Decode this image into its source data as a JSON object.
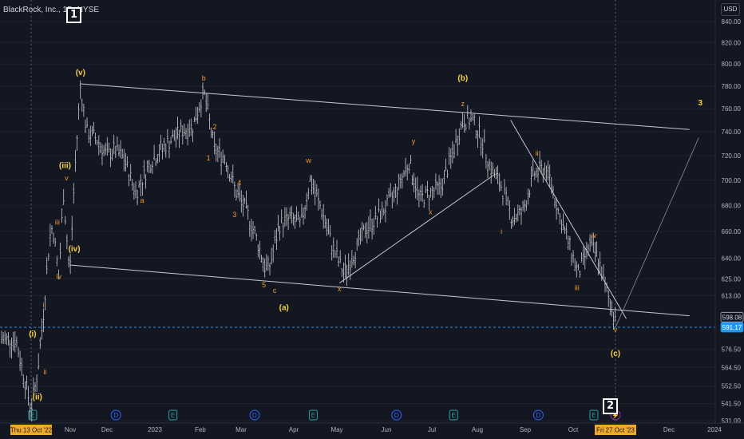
{
  "header": {
    "symbol": "BlackRock, Inc., 1D, NYSE",
    "currency": "USD"
  },
  "box_labels": [
    "1",
    "2"
  ],
  "chart_data": {
    "type": "candlestick",
    "title": "",
    "y_axis": {
      "ticks": [
        "840.00",
        "820.00",
        "800.00",
        "780.00",
        "760.00",
        "740.00",
        "720.00",
        "700.00",
        "680.00",
        "660.00",
        "640.00",
        "625.00",
        "613.00",
        "598.08",
        "591.17",
        "576.50",
        "564.50",
        "552.50",
        "541.50",
        "531.00"
      ],
      "scale": "log"
    },
    "x_axis": {
      "ticks": [
        "Nov",
        "Dec",
        "2023",
        "Feb",
        "Mar",
        "Apr",
        "May",
        "Jun",
        "Jul",
        "Aug",
        "Sep",
        "Oct",
        "Dec",
        "2024"
      ],
      "crosshair_start": "Thu 13 Oct '22",
      "crosshair_end": "Fri 27 Oct '23"
    },
    "price_badges": [
      {
        "value": "598.08",
        "kind": "last-close"
      },
      {
        "value": "591.17",
        "kind": "current"
      }
    ],
    "colors": {
      "background": "#131722",
      "bars": "#c8cad0",
      "wave_orange": "#f09a2b",
      "wave_yellow": "#f5d142",
      "current_price": "#2196f3"
    },
    "price_path": [
      [
        "2022-10-03",
        583
      ],
      [
        "2022-10-08",
        560
      ],
      [
        "2022-10-13",
        538
      ],
      [
        "2022-10-17",
        560
      ],
      [
        "2022-10-21",
        600
      ],
      [
        "2022-10-25",
        655
      ],
      [
        "2022-10-27",
        665
      ],
      [
        "2022-10-31",
        625
      ],
      [
        "2022-11-03",
        690
      ],
      [
        "2022-11-07",
        625
      ],
      [
        "2022-11-10",
        700
      ],
      [
        "2022-11-14",
        780
      ],
      [
        "2022-11-18",
        740
      ],
      [
        "2022-11-24",
        735
      ],
      [
        "2022-12-01",
        720
      ],
      [
        "2022-12-06",
        725
      ],
      [
        "2022-12-12",
        718
      ],
      [
        "2022-12-20",
        690
      ],
      [
        "2022-12-30",
        716
      ],
      [
        "2023-01-09",
        730
      ],
      [
        "2023-01-18",
        740
      ],
      [
        "2023-01-26",
        745
      ],
      [
        "2023-02-02",
        775
      ],
      [
        "2023-02-09",
        725
      ],
      [
        "2023-02-16",
        718
      ],
      [
        "2023-02-23",
        690
      ],
      [
        "2023-03-02",
        675
      ],
      [
        "2023-03-08",
        655
      ],
      [
        "2023-03-14",
        632
      ],
      [
        "2023-03-17",
        635
      ],
      [
        "2023-03-23",
        665
      ],
      [
        "2023-03-30",
        670
      ],
      [
        "2023-04-06",
        665
      ],
      [
        "2023-04-12",
        700
      ],
      [
        "2023-04-19",
        678
      ],
      [
        "2023-04-26",
        650
      ],
      [
        "2023-05-04",
        628
      ],
      [
        "2023-05-11",
        645
      ],
      [
        "2023-05-18",
        662
      ],
      [
        "2023-05-25",
        670
      ],
      [
        "2023-06-01",
        680
      ],
      [
        "2023-06-08",
        695
      ],
      [
        "2023-06-15",
        715
      ],
      [
        "2023-06-22",
        685
      ],
      [
        "2023-06-29",
        690
      ],
      [
        "2023-07-06",
        695
      ],
      [
        "2023-07-13",
        720
      ],
      [
        "2023-07-20",
        750
      ],
      [
        "2023-07-26",
        750
      ],
      [
        "2023-08-01",
        735
      ],
      [
        "2023-08-07",
        710
      ],
      [
        "2023-08-14",
        695
      ],
      [
        "2023-08-21",
        670
      ],
      [
        "2023-08-28",
        675
      ],
      [
        "2023-09-04",
        705
      ],
      [
        "2023-09-11",
        710
      ],
      [
        "2023-09-15",
        700
      ],
      [
        "2023-09-21",
        670
      ],
      [
        "2023-09-27",
        650
      ],
      [
        "2023-10-03",
        628
      ],
      [
        "2023-10-10",
        650
      ],
      [
        "2023-10-16",
        640
      ],
      [
        "2023-10-20",
        620
      ],
      [
        "2023-10-26",
        600
      ],
      [
        "2023-10-27",
        598
      ]
    ],
    "trendlines": [
      {
        "from": [
          "2022-11-14",
          782
        ],
        "to": [
          "2023-12-14",
          742
        ]
      },
      {
        "from": [
          "2022-11-07",
          635
        ],
        "to": [
          "2023-12-14",
          599
        ]
      },
      {
        "from": [
          "2023-05-01",
          622
        ],
        "to": [
          "2023-08-10",
          705
        ]
      },
      {
        "from": [
          "2023-08-20",
          750
        ],
        "to": [
          "2023-11-03",
          597
        ]
      },
      {
        "from": [
          "2023-10-27",
          591
        ],
        "to": [
          "2023-12-20",
          735
        ]
      }
    ],
    "annotations": [
      {
        "text": "(v)",
        "date": "2022-11-14",
        "price": 790,
        "color": "yellow"
      },
      {
        "text": "(iii)",
        "date": "2022-11-04",
        "price": 710,
        "color": "yellow"
      },
      {
        "text": "(iv)",
        "date": "2022-11-10",
        "price": 645,
        "color": "yellow"
      },
      {
        "text": "(i)",
        "date": "2022-10-14",
        "price": 585,
        "color": "yellow"
      },
      {
        "text": "(ii)",
        "date": "2022-10-17",
        "price": 544,
        "color": "yellow"
      },
      {
        "text": "v",
        "date": "2022-11-05",
        "price": 700,
        "color": "orange"
      },
      {
        "text": "iii",
        "date": "2022-10-30",
        "price": 665,
        "color": "orange"
      },
      {
        "text": "iv",
        "date": "2022-10-31",
        "price": 625,
        "color": "orange"
      },
      {
        "text": "i",
        "date": "2022-10-21",
        "price": 605,
        "color": "orange"
      },
      {
        "text": "ii",
        "date": "2022-10-22",
        "price": 560,
        "color": "orange"
      },
      {
        "text": "b",
        "date": "2023-02-02",
        "price": 785,
        "color": "orange"
      },
      {
        "text": "2",
        "date": "2023-02-09",
        "price": 742,
        "color": "orange"
      },
      {
        "text": "1",
        "date": "2023-02-05",
        "price": 716,
        "color": "orange"
      },
      {
        "text": "4",
        "date": "2023-02-25",
        "price": 696,
        "color": "orange"
      },
      {
        "text": "3",
        "date": "2023-02-22",
        "price": 671,
        "color": "orange"
      },
      {
        "text": "5",
        "date": "2023-03-13",
        "price": 619,
        "color": "orange"
      },
      {
        "text": "a",
        "date": "2022-12-24",
        "price": 682,
        "color": "orange"
      },
      {
        "text": "c",
        "date": "2023-03-20",
        "price": 615,
        "color": "orange"
      },
      {
        "text": "(a)",
        "date": "2023-03-26",
        "price": 603,
        "color": "yellow"
      },
      {
        "text": "w",
        "date": "2023-04-11",
        "price": 714,
        "color": "orange"
      },
      {
        "text": "x",
        "date": "2023-05-01",
        "price": 616,
        "color": "orange"
      },
      {
        "text": "y",
        "date": "2023-06-18",
        "price": 730,
        "color": "orange"
      },
      {
        "text": "x",
        "date": "2023-06-29",
        "price": 673,
        "color": "orange"
      },
      {
        "text": "z",
        "date": "2023-07-20",
        "price": 762,
        "color": "orange"
      },
      {
        "text": "(b)",
        "date": "2023-07-20",
        "price": 785,
        "color": "yellow"
      },
      {
        "text": "ii",
        "date": "2023-09-06",
        "price": 720,
        "color": "orange"
      },
      {
        "text": "i",
        "date": "2023-08-14",
        "price": 658,
        "color": "orange"
      },
      {
        "text": "iv",
        "date": "2023-10-13",
        "price": 655,
        "color": "orange"
      },
      {
        "text": "iii",
        "date": "2023-10-02",
        "price": 617,
        "color": "orange"
      },
      {
        "text": "v",
        "date": "2023-10-27",
        "price": 588,
        "color": "orange"
      },
      {
        "text": "(c)",
        "date": "2023-10-27",
        "price": 572,
        "color": "yellow"
      },
      {
        "text": "3",
        "date": "2023-12-21",
        "price": 763,
        "color": "yellow"
      }
    ],
    "event_markers": [
      {
        "date": "2022-10-14",
        "letter": "E"
      },
      {
        "date": "2022-12-07",
        "letter": "D"
      },
      {
        "date": "2023-01-13",
        "letter": "E"
      },
      {
        "date": "2023-03-07",
        "letter": "D"
      },
      {
        "date": "2023-04-14",
        "letter": "E"
      },
      {
        "date": "2023-06-07",
        "letter": "D"
      },
      {
        "date": "2023-07-14",
        "letter": "E"
      },
      {
        "date": "2023-09-07",
        "letter": "D"
      },
      {
        "date": "2023-10-13",
        "letter": "E"
      },
      {
        "date": "2023-10-27",
        "letter": "⚡"
      }
    ]
  }
}
